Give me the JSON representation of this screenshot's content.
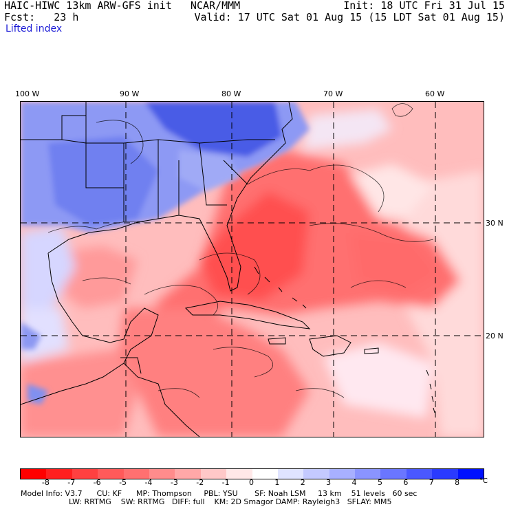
{
  "header": {
    "line1_left": "HAIC-HIWC 13km ARW-GFS init   NCAR/MMM",
    "line2_left": "Fcst:   23 h",
    "line1_right": "Init: 18 UTC Fri 31 Jul 15",
    "line2_right": "Valid: 17 UTC Sat 01 Aug 15 (15 LDT Sat 01 Aug 15)"
  },
  "variable": "Lifted index",
  "axes": {
    "lon_labels": [
      "100 W",
      "90 W",
      "80 W",
      "70 W",
      "60 W"
    ],
    "lat_labels": [
      "30 N",
      "20 N"
    ]
  },
  "colorbar": {
    "labels": [
      "-8",
      "-7",
      "-6",
      "-5",
      "-4",
      "-3",
      "-2",
      "-1",
      "0",
      "1",
      "2",
      "3",
      "4",
      "5",
      "6",
      "7",
      "8"
    ],
    "unit": "°C",
    "colors": [
      "#ff0000",
      "#ff2020",
      "#ff4040",
      "#ff5a5a",
      "#ff7070",
      "#ff8c8c",
      "#ffa8a8",
      "#ffc8c8",
      "#ffe8e8",
      "#ffffff",
      "#e0e4ff",
      "#c4caff",
      "#a8b0ff",
      "#8a94ff",
      "#6a76ff",
      "#4a58ff",
      "#2a3aff",
      "#0010ff"
    ]
  },
  "footer": {
    "line1": "Model Info: V3.7      CU: KF      MP: Thompson     PBL: YSU       SF: Noah LSM     13 km    51 levels   60 sec",
    "line2": "LW: RRTMG    SW: RRTMG   DIFF: full    KM: 2D Smagor DAMP: Rayleigh3   SFLAY: MM5"
  },
  "map_colors": {
    "ocean_base": "#ffbdbd",
    "strong_red": "#ff5a5a",
    "mid_red": "#ff8a8a",
    "land_blue": "#7080f0",
    "deep_blue": "#3a4ce0",
    "light_blue": "#c8d0ff",
    "white_area": "#f0f0ff"
  }
}
